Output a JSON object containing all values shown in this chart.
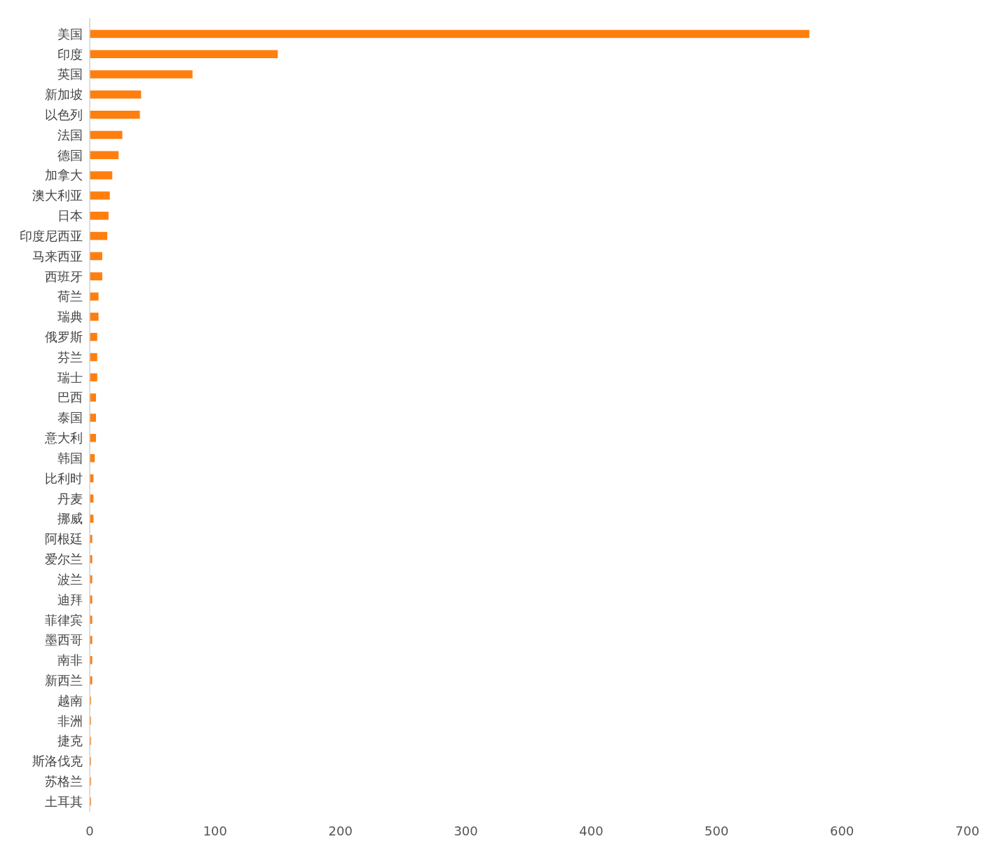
{
  "chart_data": {
    "type": "bar",
    "orientation": "horizontal",
    "categories": [
      "美国",
      "印度",
      "英国",
      "新加坡",
      "以色列",
      "法国",
      "德国",
      "加拿大",
      "澳大利亚",
      "日本",
      "印度尼西亚",
      "马来西亚",
      "西班牙",
      "荷兰",
      "瑞典",
      "俄罗斯",
      "芬兰",
      "瑞士",
      "巴西",
      "泰国",
      "意大利",
      "韩国",
      "比利时",
      "丹麦",
      "挪威",
      "阿根廷",
      "爱尔兰",
      "波兰",
      "迪拜",
      "菲律宾",
      "墨西哥",
      "南非",
      "新西兰",
      "越南",
      "非洲",
      "捷克",
      "斯洛伐克",
      "苏格兰",
      "土耳其"
    ],
    "values": [
      574,
      150,
      82,
      41,
      40,
      26,
      23,
      18,
      16,
      15,
      14,
      10,
      10,
      7,
      7,
      6,
      6,
      6,
      5,
      5,
      5,
      4,
      3,
      3,
      3,
      2,
      2,
      2,
      2,
      2,
      2,
      2,
      2,
      1,
      1,
      1,
      1,
      1,
      1
    ],
    "color": "#ff7f0e",
    "xlim": [
      0,
      700
    ],
    "xticks": [
      0,
      100,
      200,
      300,
      400,
      500,
      600,
      700
    ],
    "grid": false
  }
}
